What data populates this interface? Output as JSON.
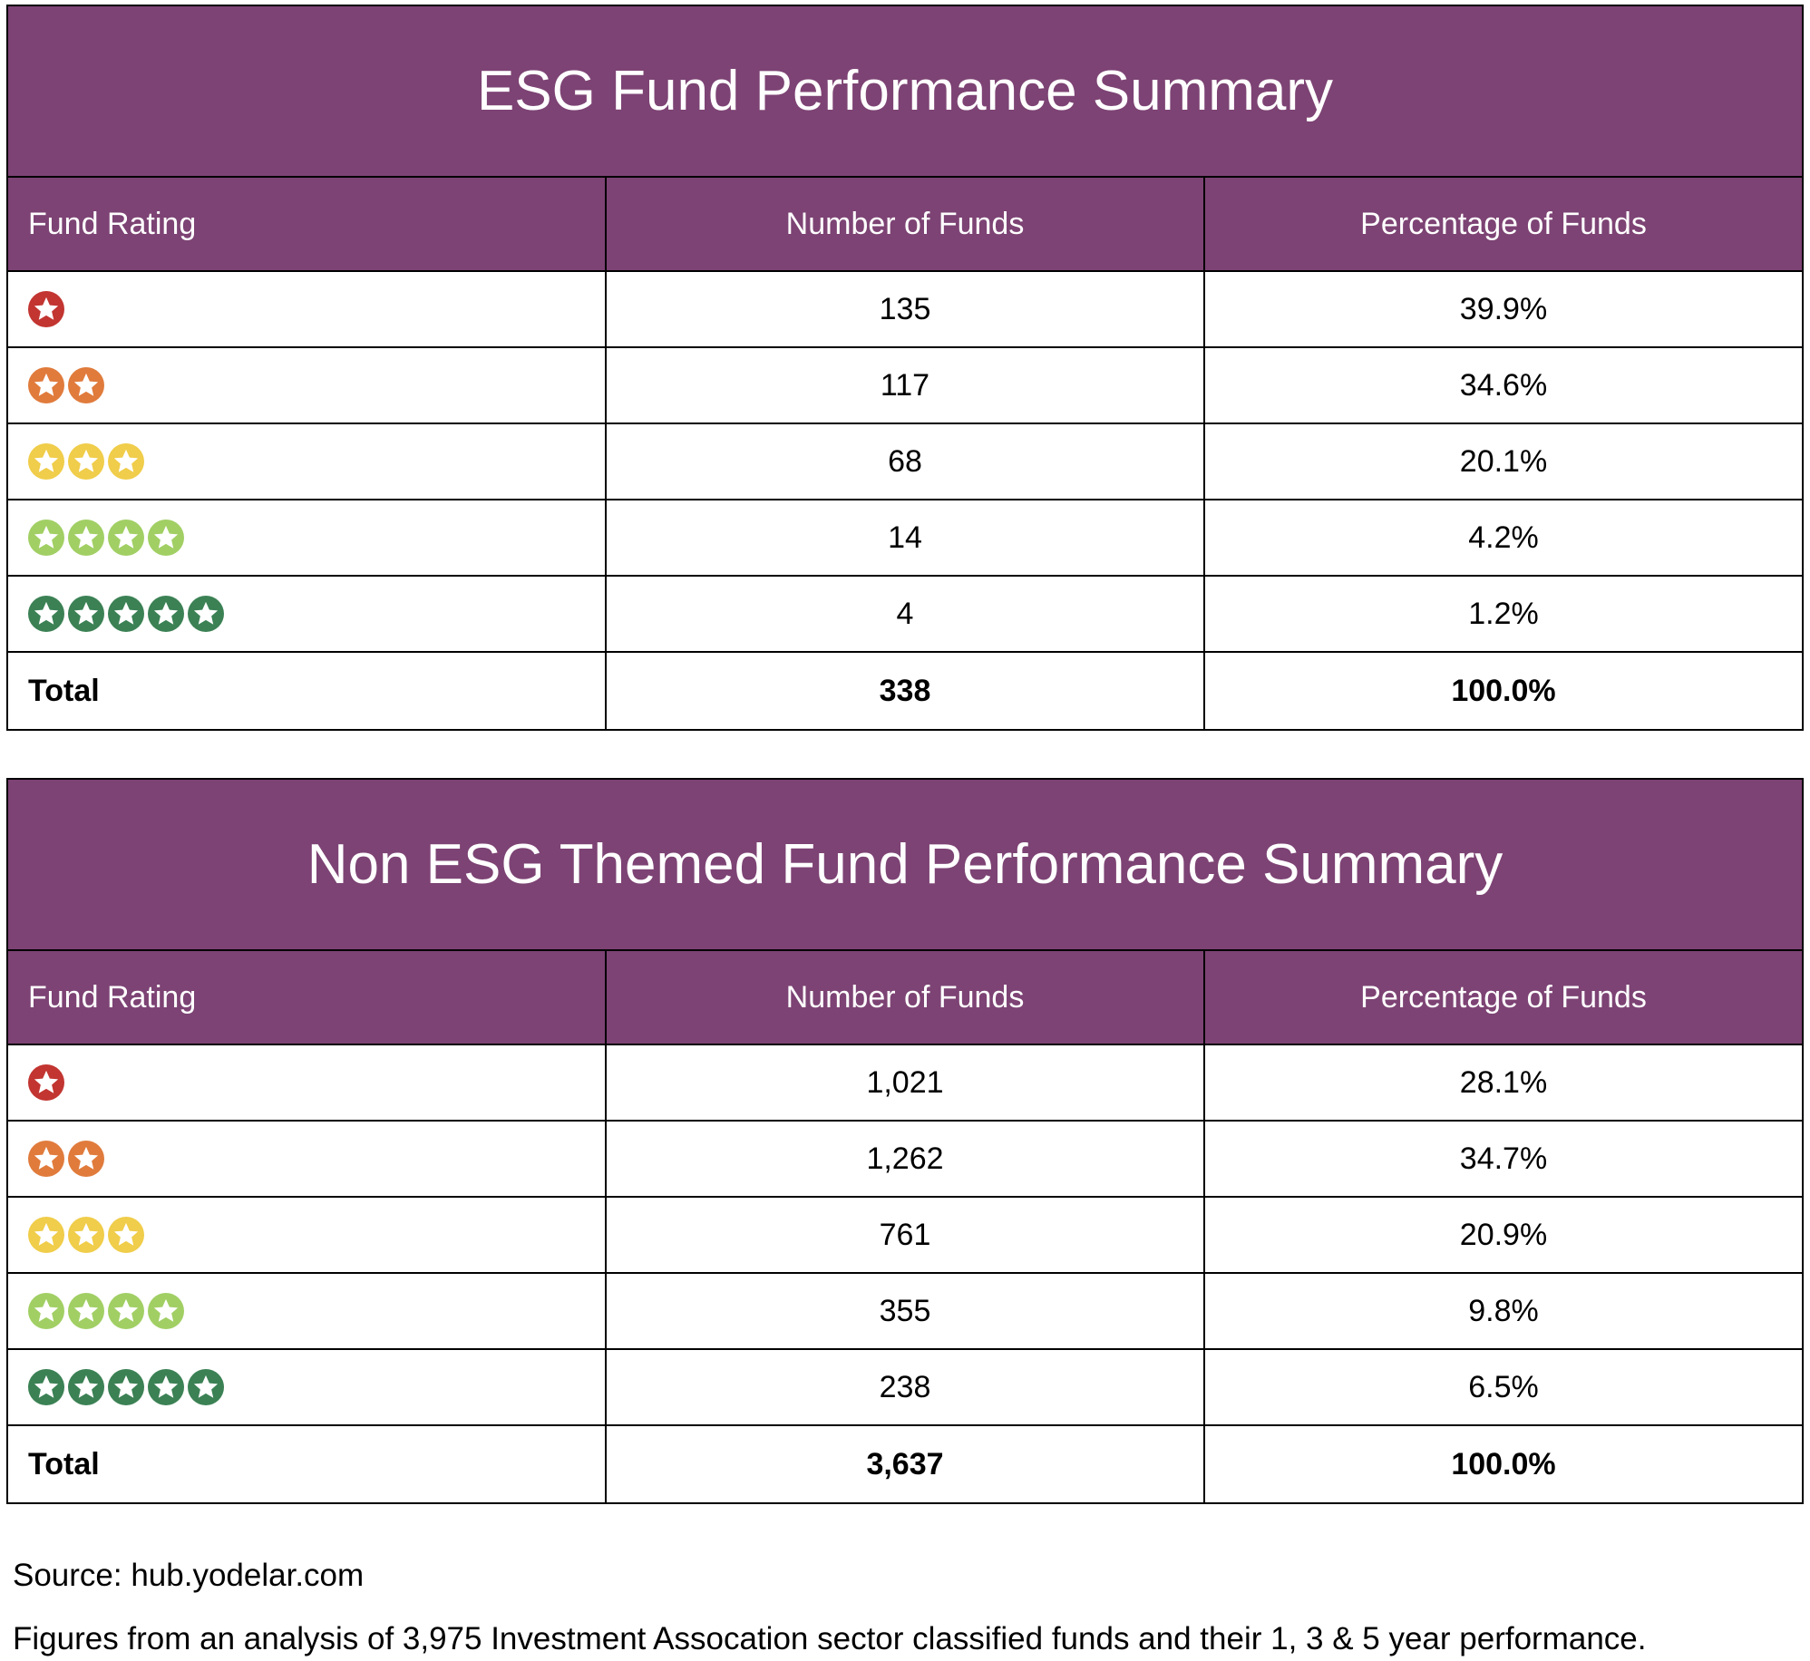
{
  "colors": {
    "header": "#7d4374",
    "rating_1": "#c23531",
    "rating_2": "#e07b3c",
    "rating_3": "#f0cd4a",
    "rating_4": "#a1cf64",
    "rating_5": "#3b8154"
  },
  "tables": [
    {
      "title": "ESG Fund Performance Summary",
      "headers": [
        "Fund Rating",
        "Number of Funds",
        "Percentage of Funds"
      ],
      "rows": [
        {
          "stars": 1,
          "count": "135",
          "pct": "39.9%"
        },
        {
          "stars": 2,
          "count": "117",
          "pct": "34.6%"
        },
        {
          "stars": 3,
          "count": "68",
          "pct": "20.1%"
        },
        {
          "stars": 4,
          "count": "14",
          "pct": "4.2%"
        },
        {
          "stars": 5,
          "count": "4",
          "pct": "1.2%"
        }
      ],
      "total": {
        "label": "Total",
        "count": "338",
        "pct": "100.0%"
      }
    },
    {
      "title": "Non ESG Themed Fund Performance Summary",
      "headers": [
        "Fund Rating",
        "Number of Funds",
        "Percentage of Funds"
      ],
      "rows": [
        {
          "stars": 1,
          "count": "1,021",
          "pct": "28.1%"
        },
        {
          "stars": 2,
          "count": "1,262",
          "pct": "34.7%"
        },
        {
          "stars": 3,
          "count": "761",
          "pct": "20.9%"
        },
        {
          "stars": 4,
          "count": "355",
          "pct": "9.8%"
        },
        {
          "stars": 5,
          "count": "238",
          "pct": "6.5%"
        }
      ],
      "total": {
        "label": "Total",
        "count": "3,637",
        "pct": "100.0%"
      }
    }
  ],
  "footer": {
    "source": "Source: hub.yodelar.com",
    "note": "Figures from an analysis of 3,975 Investment Assocation sector classified funds and their 1, 3 & 5 year performance."
  }
}
